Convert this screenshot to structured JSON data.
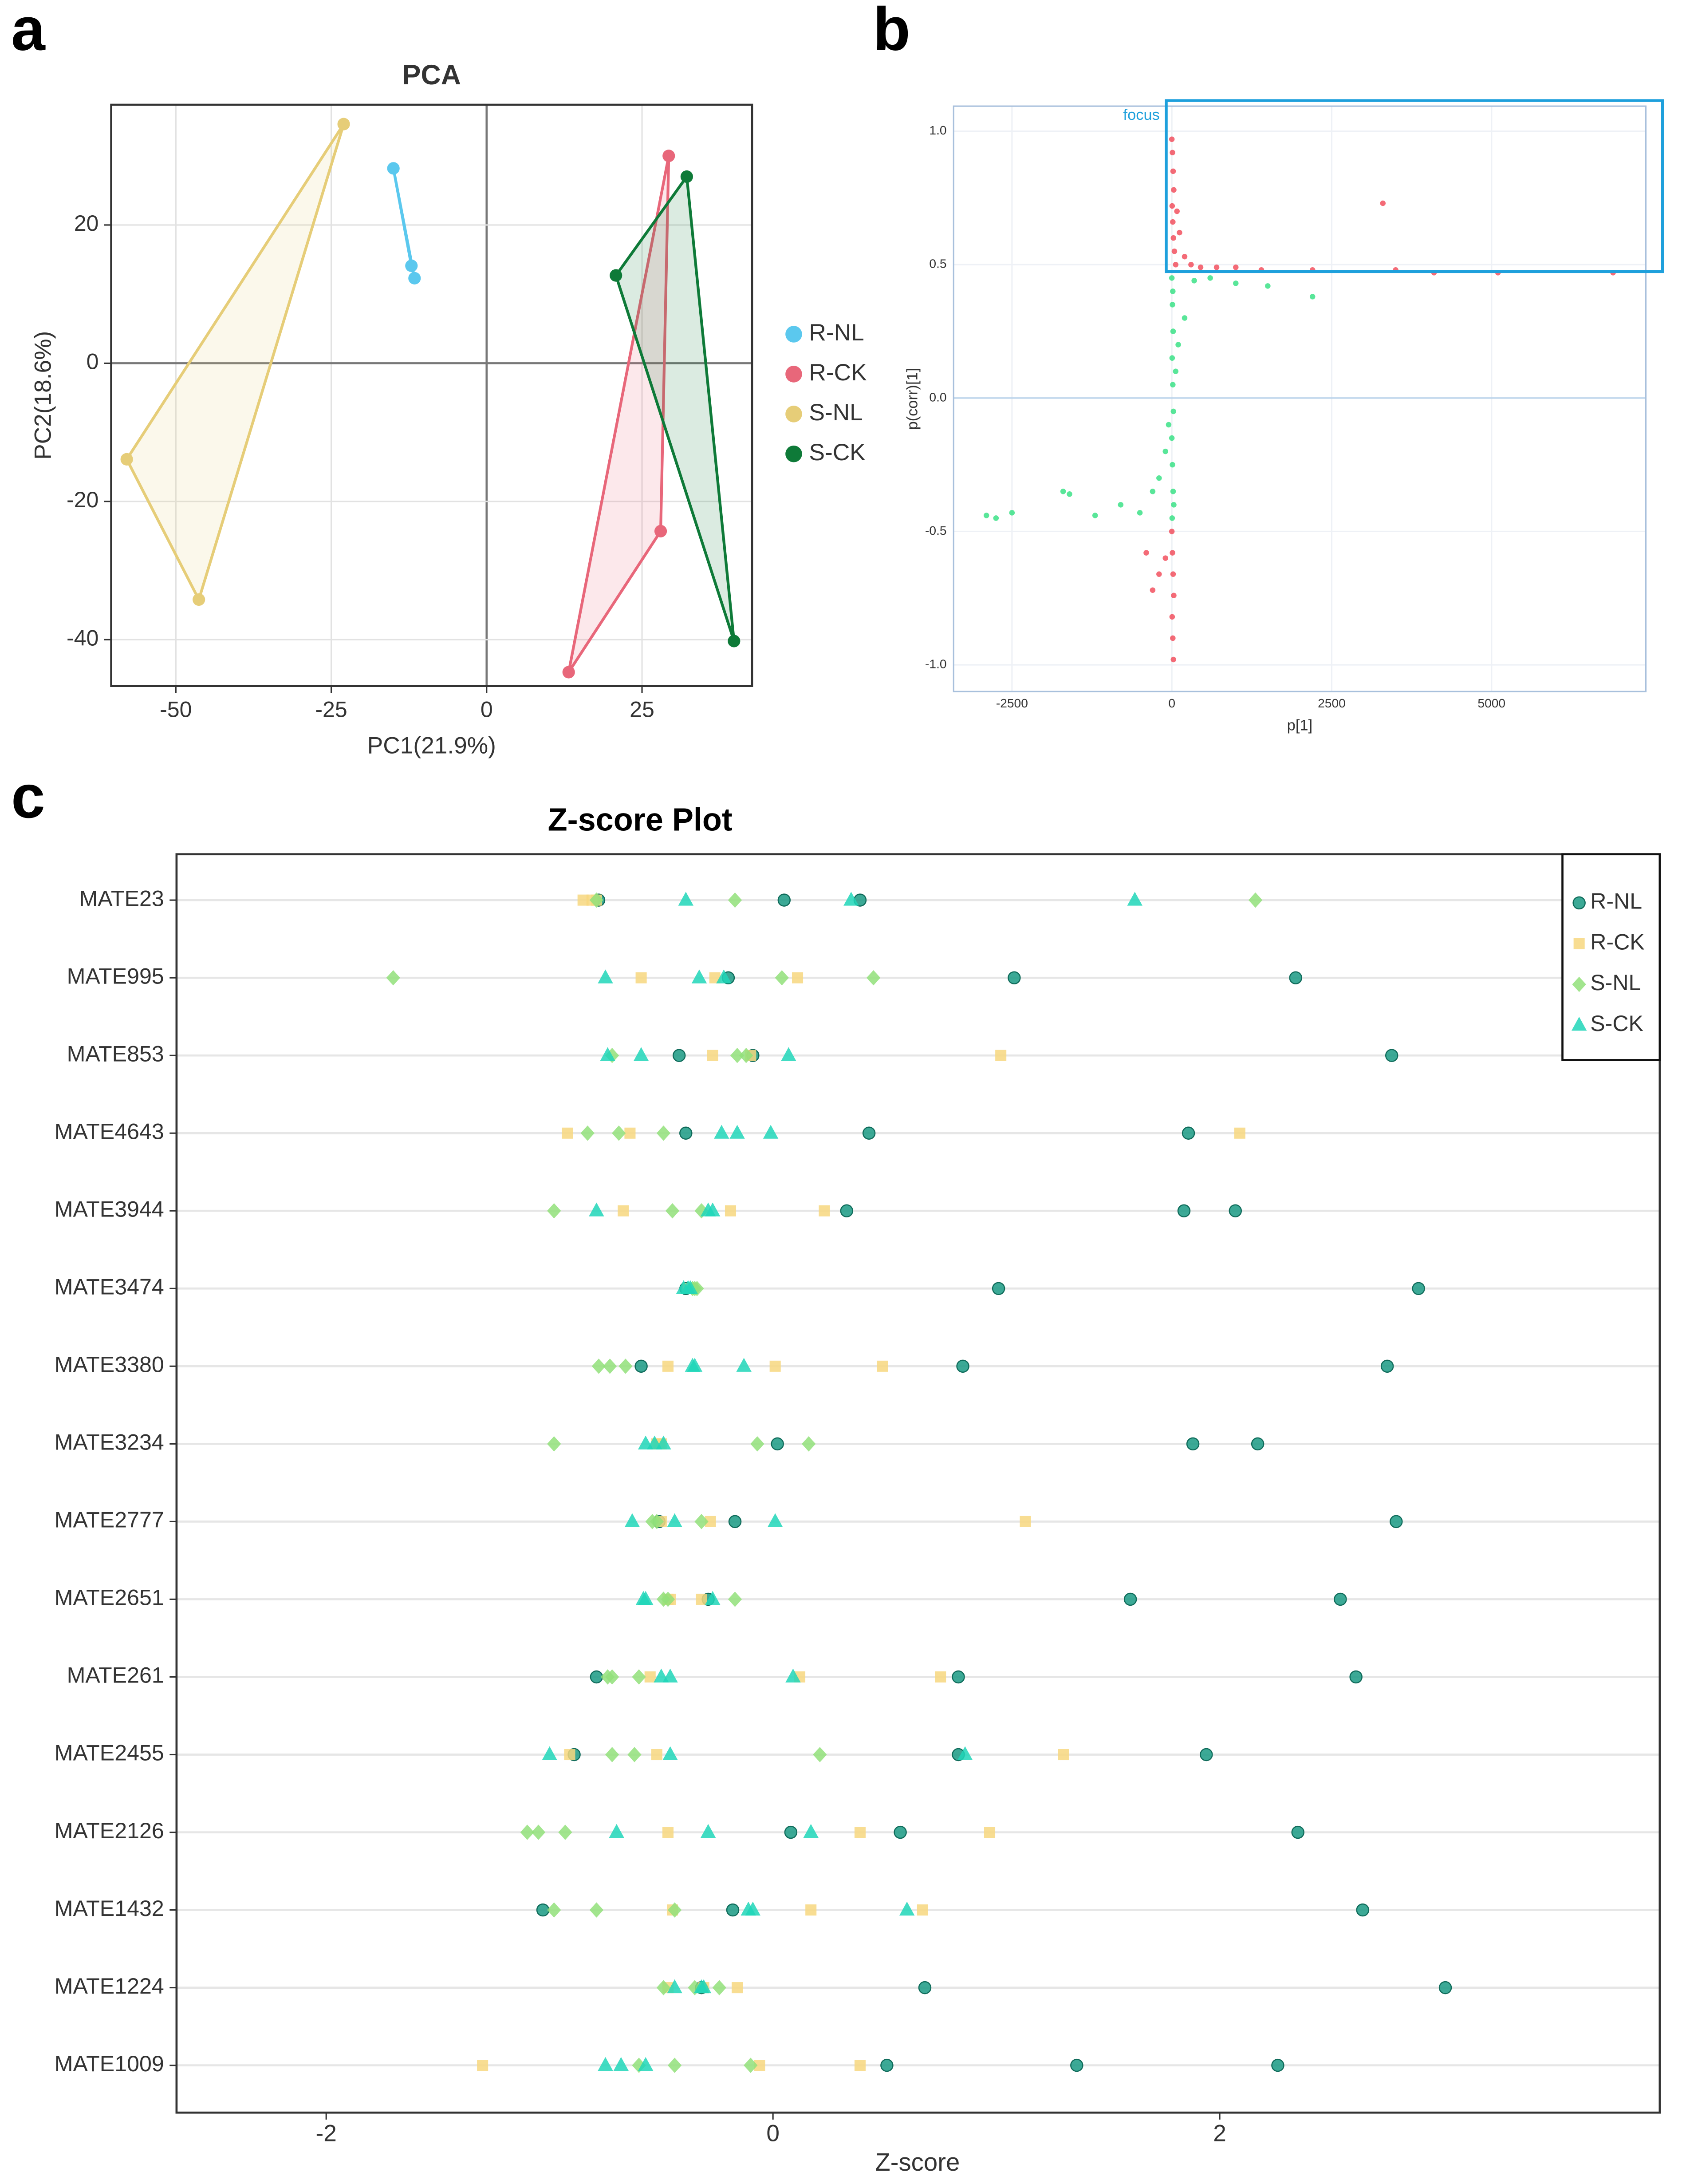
{
  "chart_data": [
    {
      "type": "pca",
      "panel": "a",
      "title": "PCA",
      "xlabel": "PC1(21.9%)",
      "ylabel": "PC2(18.6%)",
      "xlim": [
        -60.4,
        42.7
      ],
      "ylim": [
        -46.7,
        37.4
      ],
      "xticks": [
        -50,
        -25,
        0,
        25
      ],
      "yticks": [
        -40,
        -20,
        0,
        20
      ],
      "grid": true,
      "series": [
        {
          "name": "R-NL",
          "color": "#5bc8ee",
          "x": [
            -15.0,
            -12.1,
            -11.6
          ],
          "y": [
            28.2,
            14.1,
            12.3
          ]
        },
        {
          "name": "R-CK",
          "color": "#e8677a",
          "x": [
            29.3,
            28.0,
            13.2
          ],
          "y": [
            30.0,
            -24.3,
            -44.7
          ]
        },
        {
          "name": "S-NL",
          "color": "#e6cd78",
          "x": [
            -23.0,
            -57.9,
            -46.3
          ],
          "y": [
            34.6,
            -13.9,
            -34.2
          ]
        },
        {
          "name": "S-CK",
          "color": "#0e7a38",
          "x": [
            32.2,
            20.8,
            39.8
          ],
          "y": [
            27.0,
            12.7,
            -40.2
          ]
        }
      ]
    },
    {
      "type": "scatter",
      "panel": "b",
      "xlabel": "p[1]",
      "ylabel": "p(corr)[1]",
      "annotation": "focus",
      "xlim": [
        -3413,
        7413
      ],
      "ylim": [
        -1.1,
        1.094
      ],
      "xticks": [
        -2500,
        0,
        2500,
        5000
      ],
      "yticks": [
        {
          "value": -1.0,
          "label": "-1.0"
        },
        {
          "value": -0.5,
          "label": "-0.5"
        },
        {
          "value": 0,
          "label": "0.0"
        },
        {
          "value": 0.5,
          "label": "0.5"
        },
        {
          "value": 1.0,
          "label": "1.0"
        }
      ],
      "grid": true,
      "series": [
        {
          "color": "#f03a4a",
          "x": [
            0,
            10,
            20,
            30,
            5,
            15,
            25,
            40,
            60,
            80,
            120,
            200,
            300,
            450,
            700,
            1000,
            1400,
            2200,
            3300,
            3500,
            4100,
            5100,
            6900,
            0,
            10,
            20,
            30,
            5,
            15,
            25,
            -100,
            -200,
            -400,
            -300
          ],
          "y": [
            0.97,
            0.92,
            0.85,
            0.78,
            0.72,
            0.66,
            0.6,
            0.55,
            0.5,
            0.7,
            0.62,
            0.53,
            0.5,
            0.49,
            0.49,
            0.49,
            0.48,
            0.48,
            0.73,
            0.48,
            0.47,
            0.47,
            0.47,
            -0.5,
            -0.58,
            -0.66,
            -0.74,
            -0.82,
            -0.9,
            -0.98,
            -0.6,
            -0.66,
            -0.58,
            -0.72
          ]
        },
        {
          "color": "#22dd77",
          "x": [
            0,
            10,
            20,
            5,
            15,
            25,
            0,
            10,
            20,
            5,
            15,
            100,
            200,
            350,
            600,
            1000,
            1500,
            2200,
            -50,
            -100,
            -200,
            -300,
            -500,
            -800,
            -1200,
            -1600,
            -1700,
            -2500,
            -2750,
            -2900,
            60,
            30
          ],
          "y": [
            0.45,
            0.35,
            0.25,
            0.15,
            0.05,
            -0.05,
            -0.15,
            -0.25,
            -0.35,
            -0.45,
            0.4,
            0.2,
            0.3,
            0.44,
            0.45,
            0.43,
            0.42,
            0.38,
            -0.1,
            -0.2,
            -0.3,
            -0.35,
            -0.43,
            -0.4,
            -0.44,
            -0.36,
            -0.35,
            -0.43,
            -0.45,
            -0.44,
            0.1,
            -0.4
          ]
        }
      ]
    },
    {
      "type": "dot",
      "panel": "c",
      "title": "Z-score Plot",
      "xlabel": "Z-score",
      "categories": [
        "MATE23",
        "MATE995",
        "MATE853",
        "MATE4643",
        "MATE3944",
        "MATE3474",
        "MATE3380",
        "MATE3234",
        "MATE2777",
        "MATE2651",
        "MATE261",
        "MATE2455",
        "MATE2126",
        "MATE1432",
        "MATE1224",
        "MATE1009"
      ],
      "xlim": [
        -2.67,
        3.97
      ],
      "xticks": [
        -2,
        0,
        2
      ],
      "grid": true,
      "legend": "upper right",
      "series": [
        {
          "name": "R-NL",
          "color": "#1a9a84",
          "marker": "circle",
          "values": [
            [
              -0.78,
              0.05,
              0.39
            ],
            [
              -0.2,
              1.08,
              2.34
            ],
            [
              -0.42,
              -0.09,
              2.77
            ],
            [
              -0.39,
              0.43,
              1.86
            ],
            [
              0.33,
              1.84,
              2.07
            ],
            [
              -0.39,
              1.01,
              2.89
            ],
            [
              -0.59,
              0.85,
              2.75
            ],
            [
              0.02,
              1.88,
              2.17
            ],
            [
              -0.51,
              -0.17,
              2.79
            ],
            [
              -0.29,
              1.6,
              2.54
            ],
            [
              -0.79,
              0.83,
              2.61
            ],
            [
              -0.89,
              0.83,
              1.94
            ],
            [
              0.08,
              0.57,
              2.35
            ],
            [
              -1.03,
              -0.18,
              2.64
            ],
            [
              -0.32,
              0.68,
              3.01
            ],
            [
              0.51,
              1.36,
              2.26
            ]
          ]
        },
        {
          "name": "R-CK",
          "color": "#f7d77f",
          "marker": "square",
          "values": [
            [
              -0.85,
              -0.81,
              -0.79
            ],
            [
              -0.59,
              -0.26,
              0.11
            ],
            [
              -0.27,
              -0.1,
              1.02
            ],
            [
              -0.92,
              -0.64,
              2.09
            ],
            [
              -0.67,
              -0.19,
              0.23
            ],
            [
              -0.38,
              -0.37,
              -0.36
            ],
            [
              -0.47,
              0.01,
              0.49
            ],
            [
              -0.52,
              -0.51,
              -0.5
            ],
            [
              -0.5,
              -0.28,
              1.13
            ],
            [
              -0.47,
              -0.46,
              -0.32
            ],
            [
              -0.55,
              0.12,
              0.75
            ],
            [
              -0.91,
              -0.52,
              1.3
            ],
            [
              -0.47,
              0.39,
              0.97
            ],
            [
              -0.45,
              0.17,
              0.67
            ],
            [
              -0.47,
              -0.31,
              -0.16
            ],
            [
              -1.3,
              -0.06,
              0.39
            ]
          ]
        },
        {
          "name": "S-NL",
          "color": "#92e07a",
          "marker": "diamond",
          "values": [
            [
              -0.79,
              -0.17,
              2.16
            ],
            [
              -1.7,
              0.04,
              0.45
            ],
            [
              -0.72,
              -0.16,
              -0.12
            ],
            [
              -0.83,
              -0.69,
              -0.49
            ],
            [
              -0.98,
              -0.45,
              -0.32
            ],
            [
              -0.36,
              -0.35,
              -0.34
            ],
            [
              -0.78,
              -0.73,
              -0.66
            ],
            [
              -0.98,
              -0.07,
              0.16
            ],
            [
              -0.54,
              -0.52,
              -0.32
            ],
            [
              -0.49,
              -0.47,
              -0.17
            ],
            [
              -0.74,
              -0.72,
              -0.6
            ],
            [
              -0.72,
              -0.62,
              0.21
            ],
            [
              -1.1,
              -1.05,
              -0.93
            ],
            [
              -0.98,
              -0.79,
              -0.44
            ],
            [
              -0.49,
              -0.35,
              -0.24
            ],
            [
              -0.6,
              -0.44,
              -0.1
            ]
          ]
        },
        {
          "name": "S-CK",
          "color": "#20d6b8",
          "marker": "triangle",
          "values": [
            [
              -0.39,
              0.35,
              1.62
            ],
            [
              -0.75,
              -0.33,
              -0.22
            ],
            [
              -0.74,
              -0.59,
              0.07
            ],
            [
              -0.23,
              -0.16,
              -0.01
            ],
            [
              -0.79,
              -0.29,
              -0.27
            ],
            [
              -0.4,
              -0.38,
              -0.37
            ],
            [
              -0.36,
              -0.35,
              -0.13
            ],
            [
              -0.57,
              -0.53,
              -0.49
            ],
            [
              -0.63,
              -0.44,
              0.01
            ],
            [
              -0.58,
              -0.57,
              -0.27
            ],
            [
              -0.5,
              -0.46,
              0.09
            ],
            [
              -1.0,
              -0.46,
              0.86
            ],
            [
              -0.7,
              -0.29,
              0.17
            ],
            [
              -0.11,
              -0.09,
              0.6
            ],
            [
              -0.44,
              -0.32,
              -0.31
            ],
            [
              -0.75,
              -0.68,
              -0.57
            ]
          ]
        }
      ]
    }
  ]
}
